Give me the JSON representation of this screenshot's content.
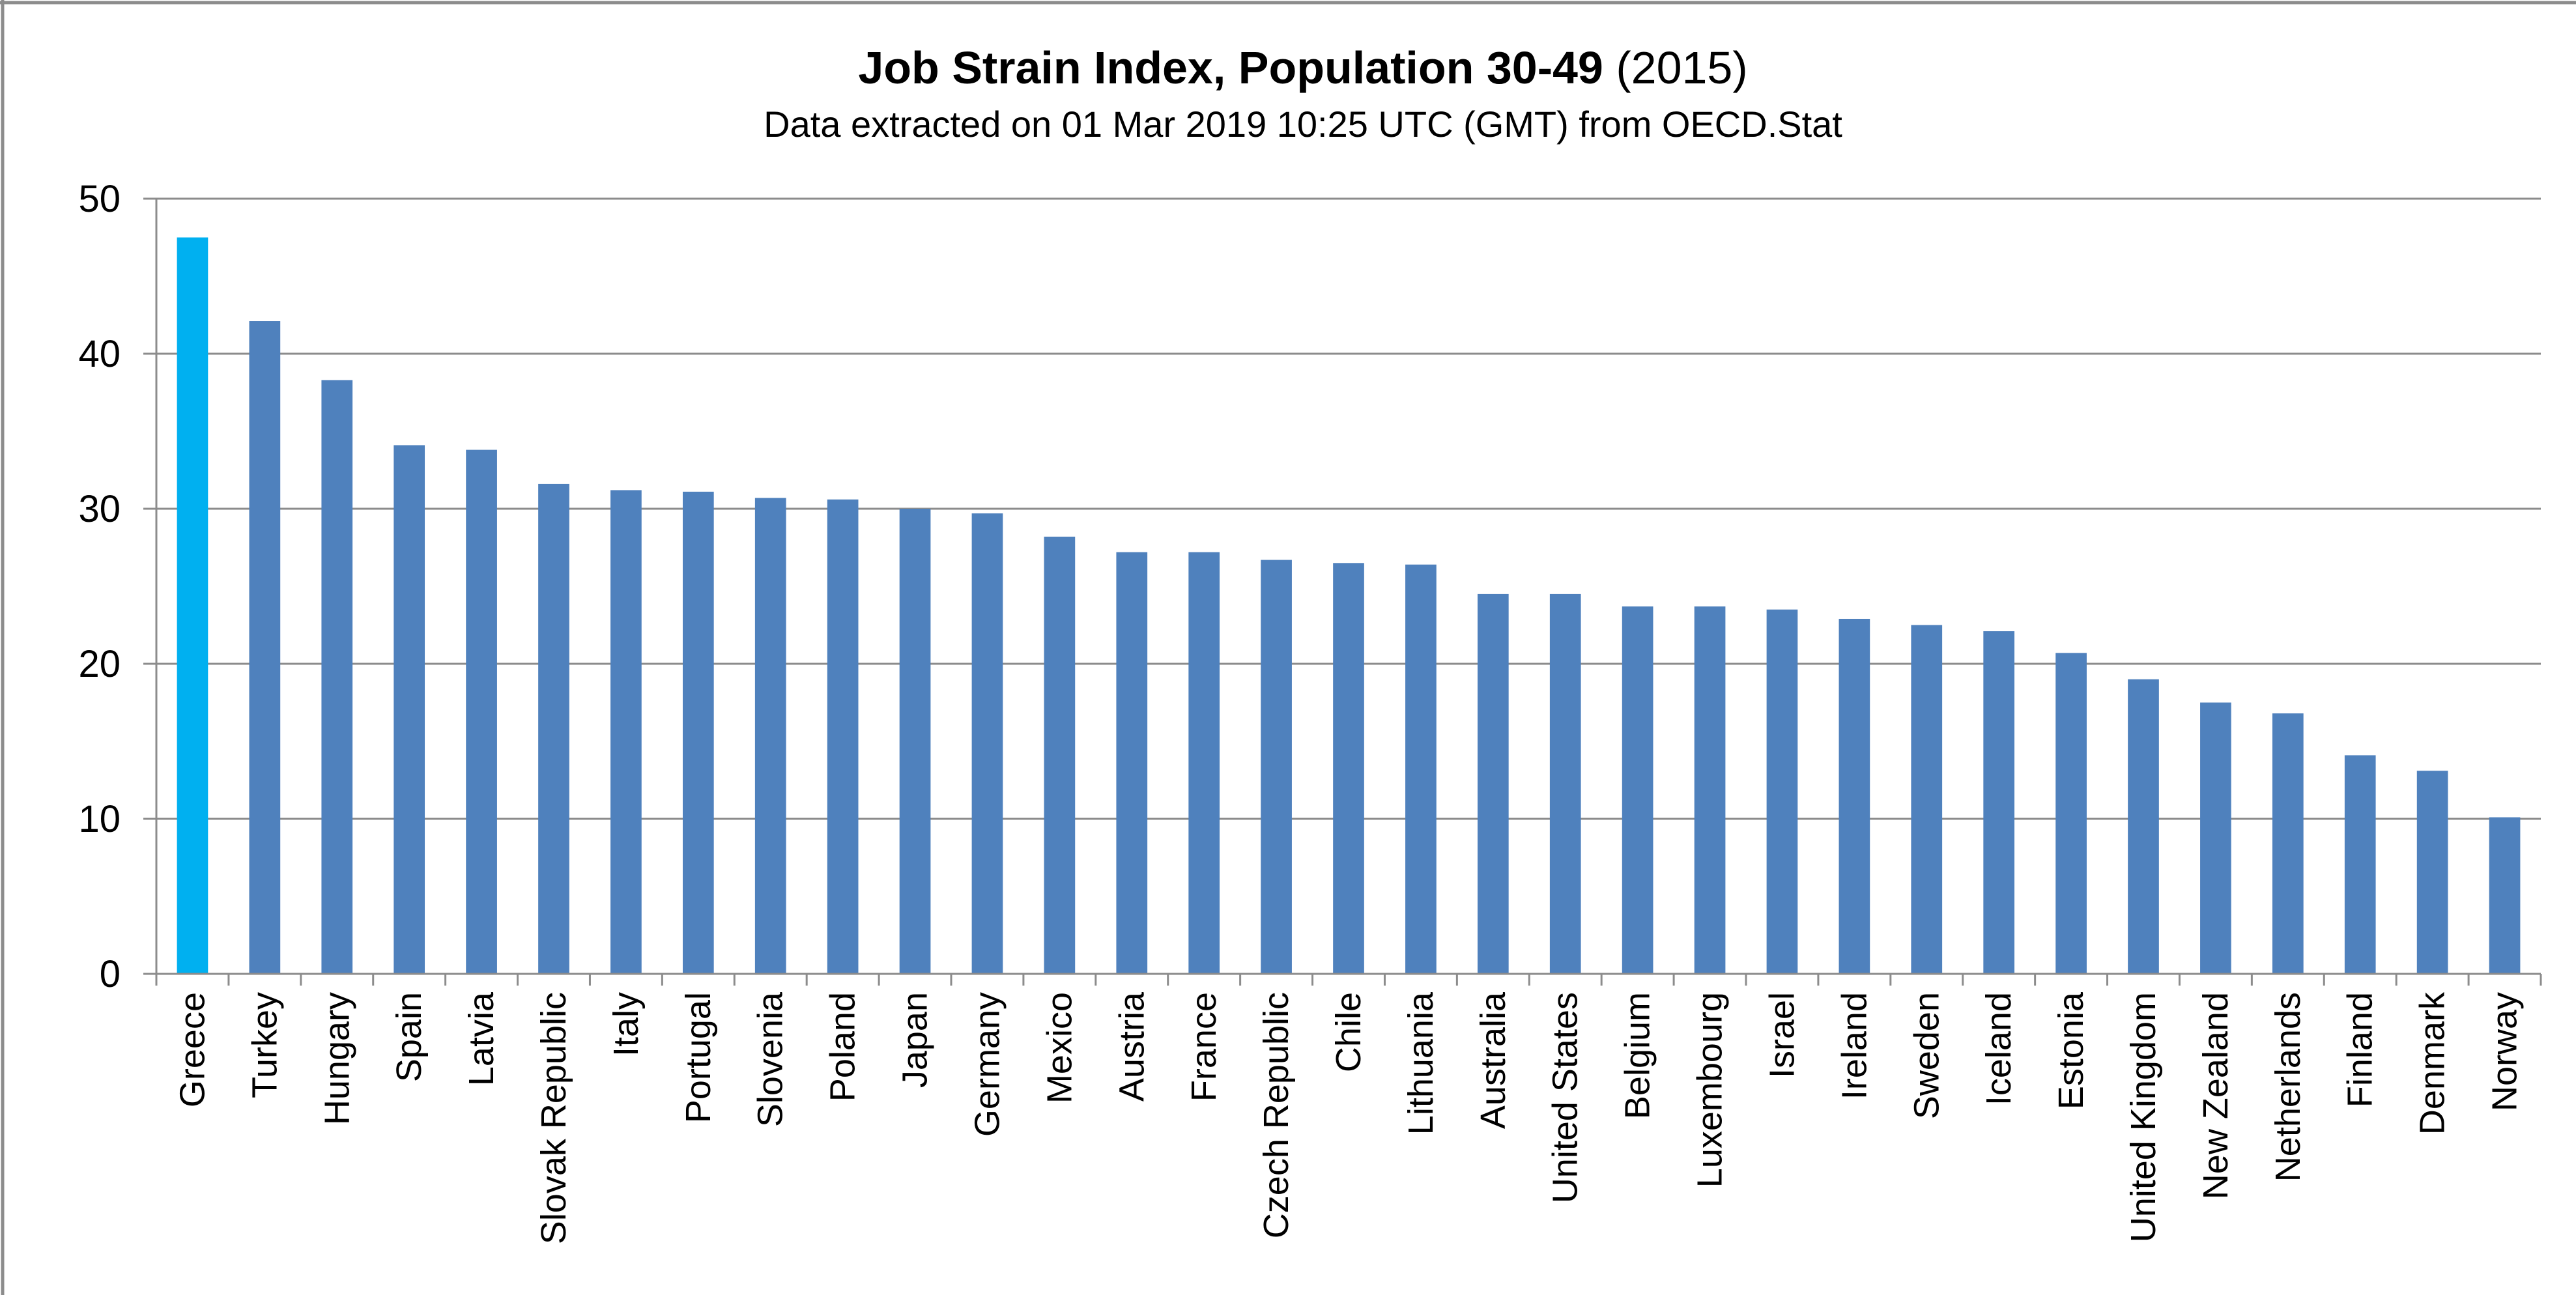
{
  "chart_data": {
    "type": "bar",
    "title_bold": "Job Strain Index, Population 30-49",
    "title_suffix": " (2015)",
    "subtitle": "Data extracted on 01 Mar 2019 10:25 UTC (GMT) from OECD.Stat",
    "xlabel": "",
    "ylabel": "",
    "ylim": [
      0,
      50
    ],
    "y_ticks": [
      0,
      10,
      20,
      30,
      40,
      50
    ],
    "grid": true,
    "legend": "none",
    "categories": [
      "Greece",
      "Turkey",
      "Hungary",
      "Spain",
      "Latvia",
      "Slovak Republic",
      "Italy",
      "Portugal",
      "Slovenia",
      "Poland",
      "Japan",
      "Germany",
      "Mexico",
      "Austria",
      "France",
      "Czech Republic",
      "Chile",
      "Lithuania",
      "Australia",
      "United States",
      "Belgium",
      "Luxembourg",
      "Israel",
      "Ireland",
      "Sweden",
      "Iceland",
      "Estonia",
      "United Kingdom",
      "New Zealand",
      "Netherlands",
      "Finland",
      "Denmark",
      "Norway"
    ],
    "values": [
      47.5,
      42.1,
      38.3,
      34.1,
      33.8,
      31.6,
      31.2,
      31.1,
      30.7,
      30.6,
      30.0,
      29.7,
      28.2,
      27.2,
      27.2,
      26.7,
      26.5,
      26.4,
      24.5,
      24.5,
      23.7,
      23.7,
      23.5,
      22.9,
      22.5,
      22.1,
      20.7,
      19.0,
      17.5,
      16.8,
      14.1,
      13.1,
      10.1
    ],
    "colors": {
      "bar": "#4F81BD",
      "highlight": "#00B0F0",
      "highlight_category": "Greece",
      "grid": "#8C8C8C",
      "axis": "#8C8C8C",
      "text": "#000000"
    }
  }
}
